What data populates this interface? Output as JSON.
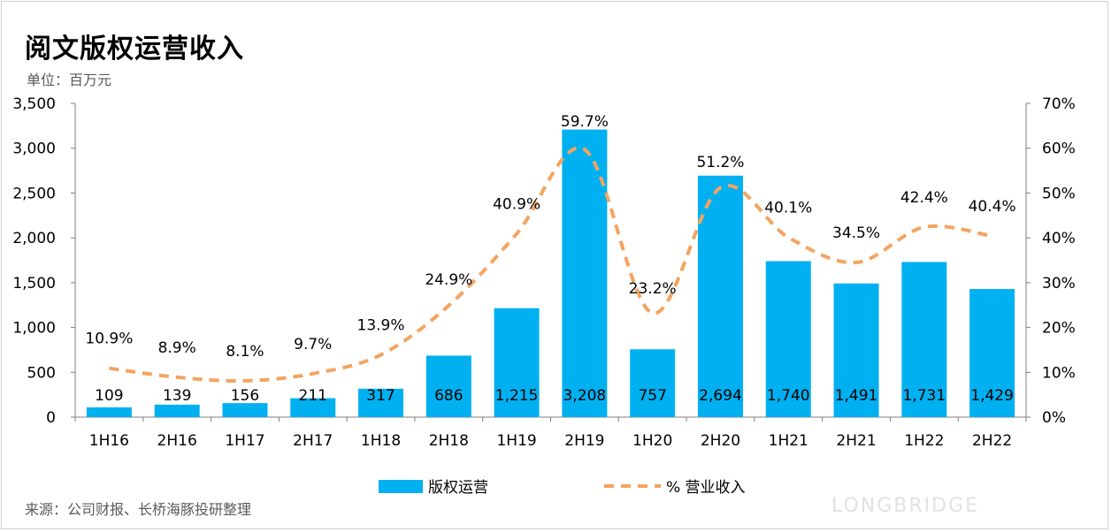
{
  "title": "阅文版权运营收入",
  "unit": "单位：百万元",
  "source": "来源：公司财报、长桥海豚投研整理",
  "watermark": "LONGBRIDGE",
  "colors": {
    "bar": "#00B0F0",
    "line": "#F4A460",
    "axis": "#7f7f7f"
  },
  "chart_data": {
    "type": "bar",
    "categories": [
      "1H16",
      "2H16",
      "1H17",
      "2H17",
      "1H18",
      "2H18",
      "1H19",
      "2H19",
      "1H20",
      "2H20",
      "1H21",
      "2H21",
      "1H22",
      "2H22"
    ],
    "series": [
      {
        "name": "版权运营",
        "axis": "left",
        "kind": "bar",
        "values": [
          109,
          139,
          156,
          211,
          317,
          686,
          1215,
          3208,
          757,
          2694,
          1740,
          1491,
          1731,
          1429
        ],
        "labels": [
          "109",
          "139",
          "156",
          "211",
          "317",
          "686",
          "1,215",
          "3,208",
          "757",
          "2,694",
          "1,740",
          "1,491",
          "1,731",
          "1,429"
        ]
      },
      {
        "name": "% 营业收入",
        "axis": "right",
        "kind": "line-dashed",
        "values": [
          10.9,
          8.9,
          8.1,
          9.7,
          13.9,
          24.9,
          40.9,
          59.7,
          23.2,
          51.2,
          40.1,
          34.5,
          42.4,
          40.4
        ],
        "labels": [
          "10.9%",
          "8.9%",
          "8.1%",
          "9.7%",
          "13.9%",
          "24.9%",
          "40.9%",
          "59.7%",
          "23.2%",
          "51.2%",
          "40.1%",
          "34.5%",
          "42.4%",
          "40.4%"
        ]
      }
    ],
    "y_left": {
      "lim": [
        0,
        3500
      ],
      "ticks": [
        "0",
        "500",
        "1,000",
        "1,500",
        "2,000",
        "2,500",
        "3,000",
        "3,500"
      ]
    },
    "y_right": {
      "lim": [
        0,
        70
      ],
      "ticks": [
        "0%",
        "10%",
        "20%",
        "30%",
        "40%",
        "50%",
        "60%",
        "70%"
      ]
    },
    "legend": {
      "position": "bottom",
      "items": [
        "版权运营",
        "% 营业收入"
      ]
    },
    "grid": false
  }
}
